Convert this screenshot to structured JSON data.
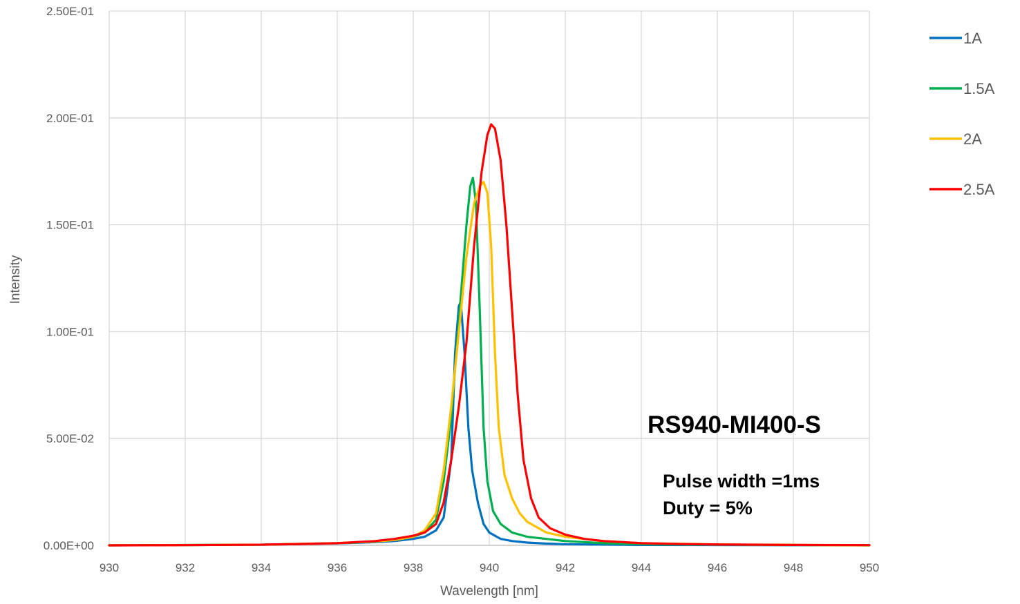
{
  "chart_data": {
    "type": "line",
    "xlabel": "Wavelength [nm]",
    "ylabel": "Intensity",
    "xlim": [
      930,
      950
    ],
    "ylim": [
      0,
      0.25
    ],
    "x_ticks": [
      "930",
      "932",
      "934",
      "936",
      "938",
      "940",
      "942",
      "944",
      "946",
      "948",
      "950"
    ],
    "y_ticks": [
      "0.00E+00",
      "5.00E-02",
      "1.00E-01",
      "1.50E-01",
      "2.00E-01",
      "2.50E-01"
    ],
    "grid": true,
    "legend_position": "right",
    "annotations": {
      "title": "RS940-MI400-S",
      "line1": "Pulse width =1ms",
      "line2": "Duty = 5%"
    },
    "series": [
      {
        "name": "1A",
        "color": "#0070C0",
        "points": [
          [
            930,
            0.0
          ],
          [
            934,
            0.0003
          ],
          [
            936,
            0.0009
          ],
          [
            937,
            0.0015
          ],
          [
            937.5,
            0.002
          ],
          [
            938,
            0.003
          ],
          [
            938.3,
            0.004
          ],
          [
            938.6,
            0.007
          ],
          [
            938.8,
            0.013
          ],
          [
            939.0,
            0.04
          ],
          [
            939.1,
            0.09
          ],
          [
            939.2,
            0.112
          ],
          [
            939.25,
            0.114
          ],
          [
            939.35,
            0.09
          ],
          [
            939.45,
            0.055
          ],
          [
            939.55,
            0.035
          ],
          [
            939.7,
            0.02
          ],
          [
            939.85,
            0.01
          ],
          [
            940.0,
            0.006
          ],
          [
            940.3,
            0.003
          ],
          [
            940.6,
            0.002
          ],
          [
            941.0,
            0.0013
          ],
          [
            941.5,
            0.0008
          ],
          [
            942,
            0.0005
          ],
          [
            944,
            0.0002
          ],
          [
            950,
            0.0
          ]
        ]
      },
      {
        "name": "1.5A",
        "color": "#00B050",
        "points": [
          [
            930,
            0.0
          ],
          [
            934,
            0.0003
          ],
          [
            936,
            0.001
          ],
          [
            937,
            0.0018
          ],
          [
            937.5,
            0.0025
          ],
          [
            938,
            0.004
          ],
          [
            938.3,
            0.006
          ],
          [
            938.6,
            0.012
          ],
          [
            938.8,
            0.03
          ],
          [
            939.0,
            0.06
          ],
          [
            939.2,
            0.105
          ],
          [
            939.4,
            0.15
          ],
          [
            939.5,
            0.168
          ],
          [
            939.57,
            0.172
          ],
          [
            939.65,
            0.16
          ],
          [
            939.75,
            0.11
          ],
          [
            939.85,
            0.055
          ],
          [
            939.95,
            0.03
          ],
          [
            940.1,
            0.016
          ],
          [
            940.3,
            0.01
          ],
          [
            940.6,
            0.006
          ],
          [
            941.0,
            0.004
          ],
          [
            941.5,
            0.003
          ],
          [
            942,
            0.002
          ],
          [
            943,
            0.001
          ],
          [
            944,
            0.0005
          ],
          [
            950,
            0.0
          ]
        ]
      },
      {
        "name": "2A",
        "color": "#FFC000",
        "points": [
          [
            930,
            0.0
          ],
          [
            934,
            0.0003
          ],
          [
            936,
            0.001
          ],
          [
            937,
            0.0018
          ],
          [
            937.5,
            0.0025
          ],
          [
            938,
            0.004
          ],
          [
            938.3,
            0.007
          ],
          [
            938.6,
            0.015
          ],
          [
            938.8,
            0.035
          ],
          [
            939.0,
            0.065
          ],
          [
            939.2,
            0.1
          ],
          [
            939.4,
            0.135
          ],
          [
            939.6,
            0.16
          ],
          [
            939.75,
            0.168
          ],
          [
            939.85,
            0.17
          ],
          [
            939.95,
            0.165
          ],
          [
            940.05,
            0.14
          ],
          [
            940.15,
            0.09
          ],
          [
            940.25,
            0.055
          ],
          [
            940.4,
            0.033
          ],
          [
            940.6,
            0.022
          ],
          [
            940.8,
            0.015
          ],
          [
            941.0,
            0.011
          ],
          [
            941.5,
            0.006
          ],
          [
            942,
            0.004
          ],
          [
            943,
            0.002
          ],
          [
            944,
            0.001
          ],
          [
            946,
            0.0004
          ],
          [
            950,
            0.0
          ]
        ]
      },
      {
        "name": "2.5A",
        "color": "#FF0000",
        "points": [
          [
            930,
            0.0
          ],
          [
            932,
            0.0001
          ],
          [
            934,
            0.0003
          ],
          [
            935,
            0.0006
          ],
          [
            936,
            0.001
          ],
          [
            937,
            0.002
          ],
          [
            937.5,
            0.003
          ],
          [
            938,
            0.0045
          ],
          [
            938.3,
            0.006
          ],
          [
            938.6,
            0.01
          ],
          [
            938.8,
            0.02
          ],
          [
            939.0,
            0.04
          ],
          [
            939.2,
            0.065
          ],
          [
            939.4,
            0.095
          ],
          [
            939.6,
            0.14
          ],
          [
            939.8,
            0.175
          ],
          [
            939.95,
            0.192
          ],
          [
            940.05,
            0.197
          ],
          [
            940.15,
            0.195
          ],
          [
            940.3,
            0.18
          ],
          [
            940.45,
            0.15
          ],
          [
            940.6,
            0.11
          ],
          [
            940.75,
            0.07
          ],
          [
            940.9,
            0.04
          ],
          [
            941.1,
            0.022
          ],
          [
            941.3,
            0.013
          ],
          [
            941.6,
            0.008
          ],
          [
            942,
            0.005
          ],
          [
            942.5,
            0.003
          ],
          [
            943,
            0.002
          ],
          [
            944,
            0.001
          ],
          [
            945,
            0.0006
          ],
          [
            946,
            0.0004
          ],
          [
            948,
            0.0002
          ],
          [
            950,
            0.0001
          ]
        ]
      }
    ]
  }
}
